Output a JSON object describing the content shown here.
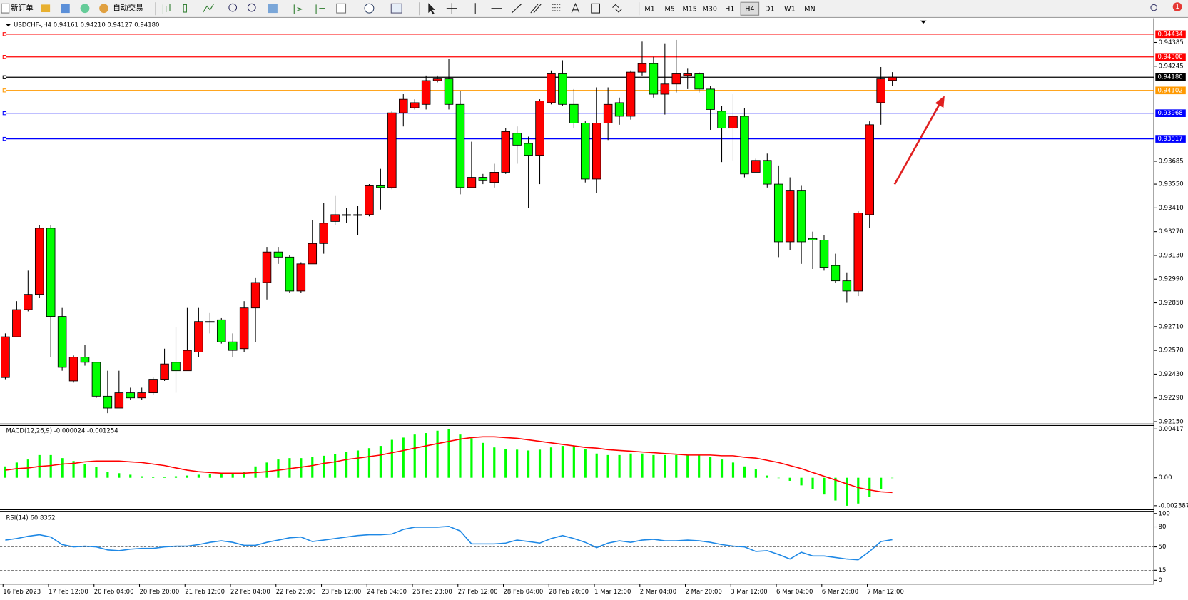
{
  "toolbar": {
    "new_order": "新订单",
    "auto_trade": "自动交易",
    "timeframes": [
      "M1",
      "M5",
      "M15",
      "M30",
      "H1",
      "H4",
      "D1",
      "W1",
      "MN"
    ],
    "notifications": 1
  },
  "chart_data": [
    {
      "type": "candlestick",
      "title": "USDCHF-,H4  0.94161 0.94210 0.94127 0.94180",
      "categories": [
        "16 Feb 2023",
        null,
        null,
        null,
        "17 Feb 12:00",
        null,
        null,
        null,
        "20 Feb 04:00",
        null,
        null,
        null,
        "20 Feb 20:00",
        null,
        null,
        null,
        "21 Feb 12:00",
        null,
        null,
        null,
        "22 Feb 04:00",
        null,
        null,
        null,
        "22 Feb 20:00",
        null,
        null,
        null,
        "23 Feb 12:00",
        null,
        null,
        null,
        "24 Feb 04:00",
        null,
        null,
        null,
        "26 Feb 23:00",
        null,
        null,
        null,
        "27 Feb 12:00",
        null,
        null,
        null,
        "28 Feb 04:00",
        null,
        null,
        null,
        "28 Feb 20:00",
        null,
        null,
        null,
        "1 Mar 12:00",
        null,
        null,
        null,
        "2 Mar 04:00",
        null,
        null,
        null,
        "2 Mar 20:00",
        null,
        null,
        null,
        "3 Mar 12:00",
        null,
        null,
        null,
        "6 Mar 04:00",
        null,
        null,
        null,
        "6 Mar 20:00",
        null,
        null,
        null,
        "7 Mar 12:00",
        null,
        null
      ],
      "open": [
        0.9241,
        0.9265,
        0.9281,
        0.929,
        0.9329,
        0.9277,
        0.9239,
        0.9253,
        0.925,
        0.923,
        0.9223,
        0.9232,
        0.9229,
        0.9232,
        0.924,
        0.925,
        0.9245,
        0.9256,
        0.9274,
        0.9275,
        0.9262,
        0.9258,
        0.9282,
        0.9297,
        0.9315,
        0.9312,
        0.9292,
        0.9308,
        0.932,
        0.9333,
        0.9337,
        0.9337,
        0.9337,
        0.9354,
        0.9353,
        0.9397,
        0.94,
        0.9402,
        0.9416,
        0.9417,
        0.9402,
        0.9353,
        0.9359,
        0.9356,
        0.9362,
        0.9385,
        0.9379,
        0.9372,
        0.9403,
        0.942,
        0.9402,
        0.9391,
        0.9358,
        0.9391,
        0.9403,
        0.9395,
        0.9421,
        0.9426,
        0.9408,
        0.9414,
        0.9419,
        0.942,
        0.9411,
        0.9398,
        0.9388,
        0.9395,
        0.9362,
        0.9369,
        0.9355,
        0.9321,
        0.9351,
        0.9323,
        0.9322,
        0.9307,
        0.9298,
        0.9292,
        0.9337,
        0.9403,
        0.94161
      ],
      "high": [
        0.9267,
        0.9286,
        0.9304,
        0.9331,
        0.9331,
        0.9282,
        0.9254,
        0.926,
        0.925,
        0.9245,
        0.9245,
        0.9235,
        0.9235,
        0.9241,
        0.9258,
        0.9271,
        0.9282,
        0.9282,
        0.9279,
        0.9276,
        0.9267,
        0.9286,
        0.93,
        0.9318,
        0.9318,
        0.9313,
        0.9309,
        0.9334,
        0.9344,
        0.9348,
        0.9341,
        0.9342,
        0.9355,
        0.9364,
        0.9398,
        0.9408,
        0.9405,
        0.9419,
        0.9419,
        0.9429,
        0.941,
        0.938,
        0.9361,
        0.9367,
        0.9388,
        0.9389,
        0.9383,
        0.9405,
        0.9422,
        0.9428,
        0.9411,
        0.9392,
        0.9412,
        0.9412,
        0.9406,
        0.9422,
        0.9439,
        0.943,
        0.9438,
        0.944,
        0.9423,
        0.9421,
        0.9413,
        0.9401,
        0.9408,
        0.94,
        0.937,
        0.9373,
        0.9366,
        0.9359,
        0.9354,
        0.9327,
        0.9325,
        0.9314,
        0.9303,
        0.9339,
        0.9392,
        0.9424,
        0.9421
      ],
      "low": [
        0.924,
        0.9265,
        0.928,
        0.9288,
        0.9253,
        0.9245,
        0.9238,
        0.9248,
        0.9229,
        0.922,
        0.9223,
        0.9228,
        0.9228,
        0.9231,
        0.9239,
        0.9232,
        0.9245,
        0.9253,
        0.9267,
        0.9261,
        0.9253,
        0.9256,
        0.9262,
        0.9287,
        0.9308,
        0.9291,
        0.9291,
        0.9308,
        0.9314,
        0.9331,
        0.9332,
        0.9325,
        0.9336,
        0.934,
        0.9352,
        0.9389,
        0.9399,
        0.9399,
        0.9415,
        0.9399,
        0.9349,
        0.9353,
        0.9355,
        0.9353,
        0.9361,
        0.9367,
        0.9341,
        0.9355,
        0.9402,
        0.9401,
        0.9388,
        0.9356,
        0.935,
        0.9381,
        0.939,
        0.9393,
        0.9419,
        0.9406,
        0.9396,
        0.9409,
        0.9411,
        0.9409,
        0.9387,
        0.9368,
        0.9369,
        0.9359,
        0.9362,
        0.9353,
        0.9312,
        0.9316,
        0.9308,
        0.9305,
        0.9304,
        0.9297,
        0.9285,
        0.9289,
        0.9329,
        0.939,
        0.94127
      ],
      "close": [
        0.9265,
        0.9281,
        0.929,
        0.9329,
        0.9277,
        0.9247,
        0.9253,
        0.925,
        0.923,
        0.9223,
        0.9232,
        0.9229,
        0.9232,
        0.924,
        0.9249,
        0.9245,
        0.9257,
        0.9274,
        0.9274,
        0.9262,
        0.9257,
        0.9282,
        0.9297,
        0.9315,
        0.9312,
        0.9292,
        0.9308,
        0.932,
        0.9332,
        0.9337,
        0.9337,
        0.9337,
        0.9354,
        0.9353,
        0.9397,
        0.9405,
        0.9403,
        0.9416,
        0.9417,
        0.9402,
        0.9353,
        0.9359,
        0.9357,
        0.9362,
        0.9386,
        0.9378,
        0.9372,
        0.9404,
        0.942,
        0.9402,
        0.9391,
        0.9358,
        0.9391,
        0.9402,
        0.9395,
        0.9421,
        0.9426,
        0.9408,
        0.9414,
        0.942,
        0.942,
        0.9411,
        0.9399,
        0.9388,
        0.9395,
        0.9361,
        0.9369,
        0.9355,
        0.9321,
        0.9351,
        0.9321,
        0.9322,
        0.9306,
        0.9298,
        0.9292,
        0.9338,
        0.939,
        0.9417,
        0.9418
      ],
      "up_color": "#ff0000",
      "down_color": "#00ff00",
      "ylim": [
        0.92145,
        0.9451
      ],
      "yticks": [
        0.94385,
        0.94245,
        0.93685,
        {
          "value": 0.9355,
          "label": "0.93550"
        },
        {
          "value": 0.9341,
          "label": "0.93410"
        },
        {
          "value": 0.9327,
          "label": "0.93270"
        },
        {
          "value": 0.9313,
          "label": "0.93130"
        },
        {
          "value": 0.9299,
          "label": "0.92990"
        },
        {
          "value": 0.9285,
          "label": "0.92850"
        },
        {
          "value": 0.9271,
          "label": "0.92710"
        },
        {
          "value": 0.9257,
          "label": "0.92570"
        },
        {
          "value": 0.9243,
          "label": "0.92430"
        },
        {
          "value": 0.9229,
          "label": "0.92290"
        },
        {
          "value": 0.9215,
          "label": "0.92150"
        }
      ],
      "levels": [
        {
          "value": 0.94434,
          "color": "#ff0000"
        },
        {
          "value": 0.943,
          "label": "0.94300",
          "color": "#ff0000"
        },
        {
          "value": 0.9418,
          "label": "0.94180",
          "color": "#000000"
        },
        {
          "value": 0.94102,
          "color": "#ff9900"
        },
        {
          "value": 0.93968,
          "color": "#0000ff"
        },
        {
          "value": 0.93817,
          "color": "#0000ff"
        }
      ]
    },
    {
      "type": "bar",
      "title": "MACD(12,26,9) -0.000024 -0.001254",
      "values": [
        0.00097,
        0.0013,
        0.00156,
        0.00194,
        0.00194,
        0.00168,
        0.00143,
        0.00117,
        0.00091,
        0.00052,
        0.00039,
        0.00026,
        0.00013,
        6e-05,
        6e-05,
        0.00013,
        0.00019,
        0.00026,
        0.00032,
        0.00039,
        0.00039,
        0.00052,
        0.00097,
        0.0013,
        0.00156,
        0.00168,
        0.00168,
        0.00175,
        0.00188,
        0.00201,
        0.0022,
        0.00233,
        0.00253,
        0.00272,
        0.00324,
        0.00343,
        0.00369,
        0.00382,
        0.00402,
        0.00417,
        0.00369,
        0.00337,
        0.00298,
        0.00259,
        0.00246,
        0.0024,
        0.00233,
        0.0024,
        0.00259,
        0.00272,
        0.00272,
        0.00246,
        0.00207,
        0.00194,
        0.00194,
        0.00207,
        0.00207,
        0.00194,
        0.00194,
        0.00194,
        0.00194,
        0.00194,
        0.00175,
        0.00156,
        0.0013,
        0.00097,
        0.00071,
        0.00019,
        0,
        -0.00026,
        -0.00065,
        -0.00097,
        -0.00143,
        -0.00194,
        -0.00239,
        -0.0022,
        -0.00162,
        -0.00097,
        -2.4e-05
      ],
      "color": "#00ff00",
      "signal": {
        "color": "#ff0000",
        "values": [
          0.00065,
          0.00078,
          0.00084,
          0.00097,
          0.00104,
          0.00117,
          0.00123,
          0.00136,
          0.00143,
          0.00143,
          0.00143,
          0.00136,
          0.0013,
          0.00117,
          0.00104,
          0.00084,
          0.00065,
          0.00052,
          0.00045,
          0.00039,
          0.00039,
          0.00039,
          0.00045,
          0.00052,
          0.00065,
          0.00078,
          0.00091,
          0.00104,
          0.00123,
          0.00136,
          0.00156,
          0.00168,
          0.00181,
          0.00194,
          0.00214,
          0.00233,
          0.00253,
          0.00272,
          0.00292,
          0.00311,
          0.0033,
          0.00343,
          0.0035,
          0.0035,
          0.00343,
          0.00337,
          0.00324,
          0.00311,
          0.00298,
          0.00285,
          0.00272,
          0.00259,
          0.00253,
          0.0024,
          0.00233,
          0.00227,
          0.0022,
          0.00214,
          0.00207,
          0.00201,
          0.00194,
          0.00194,
          0.00194,
          0.00188,
          0.00188,
          0.00175,
          0.00168,
          0.00149,
          0.0013,
          0.00104,
          0.00078,
          0.00045,
          0.00013,
          -0.00019,
          -0.00052,
          -0.00084,
          -0.00104,
          -0.0012,
          -0.001254
        ]
      },
      "ylim": [
        -0.0026,
        0.0044
      ],
      "yticks": [
        0.00417,
        {
          "value": 0,
          "label": "0.00"
        },
        -0.002387
      ]
    },
    {
      "type": "line",
      "title": "RSI(14) 60.8352",
      "values": [
        60.2,
        62.5,
        65.9,
        68.2,
        64.8,
        53.4,
        50,
        51.1,
        50,
        45.5,
        44.3,
        46.6,
        47.7,
        47.7,
        50,
        51.1,
        51.1,
        53.4,
        56.8,
        59.1,
        56.8,
        52.3,
        52.3,
        56.8,
        60.2,
        63.6,
        64.8,
        58,
        60.2,
        62.5,
        64.8,
        67,
        68.2,
        68.2,
        69.3,
        76.1,
        79.5,
        79.5,
        79.5,
        80.7,
        73.9,
        54.5,
        54.5,
        54.5,
        55.7,
        60.2,
        58,
        55.7,
        62.5,
        67,
        62.5,
        56.8,
        48.9,
        55.7,
        59.1,
        56.8,
        60.2,
        61.4,
        59.1,
        59.1,
        60.2,
        59.1,
        56.8,
        53.4,
        51.1,
        50,
        43.2,
        44.3,
        38.6,
        31.8,
        42,
        36.4,
        36.4,
        34.1,
        31.8,
        30.7,
        43.2,
        58,
        60.8352
      ],
      "color": "#1e88e5",
      "ylim": [
        0,
        100
      ],
      "yticks": [
        100,
        80,
        50,
        15,
        0
      ],
      "dashed_grid": true
    }
  ]
}
